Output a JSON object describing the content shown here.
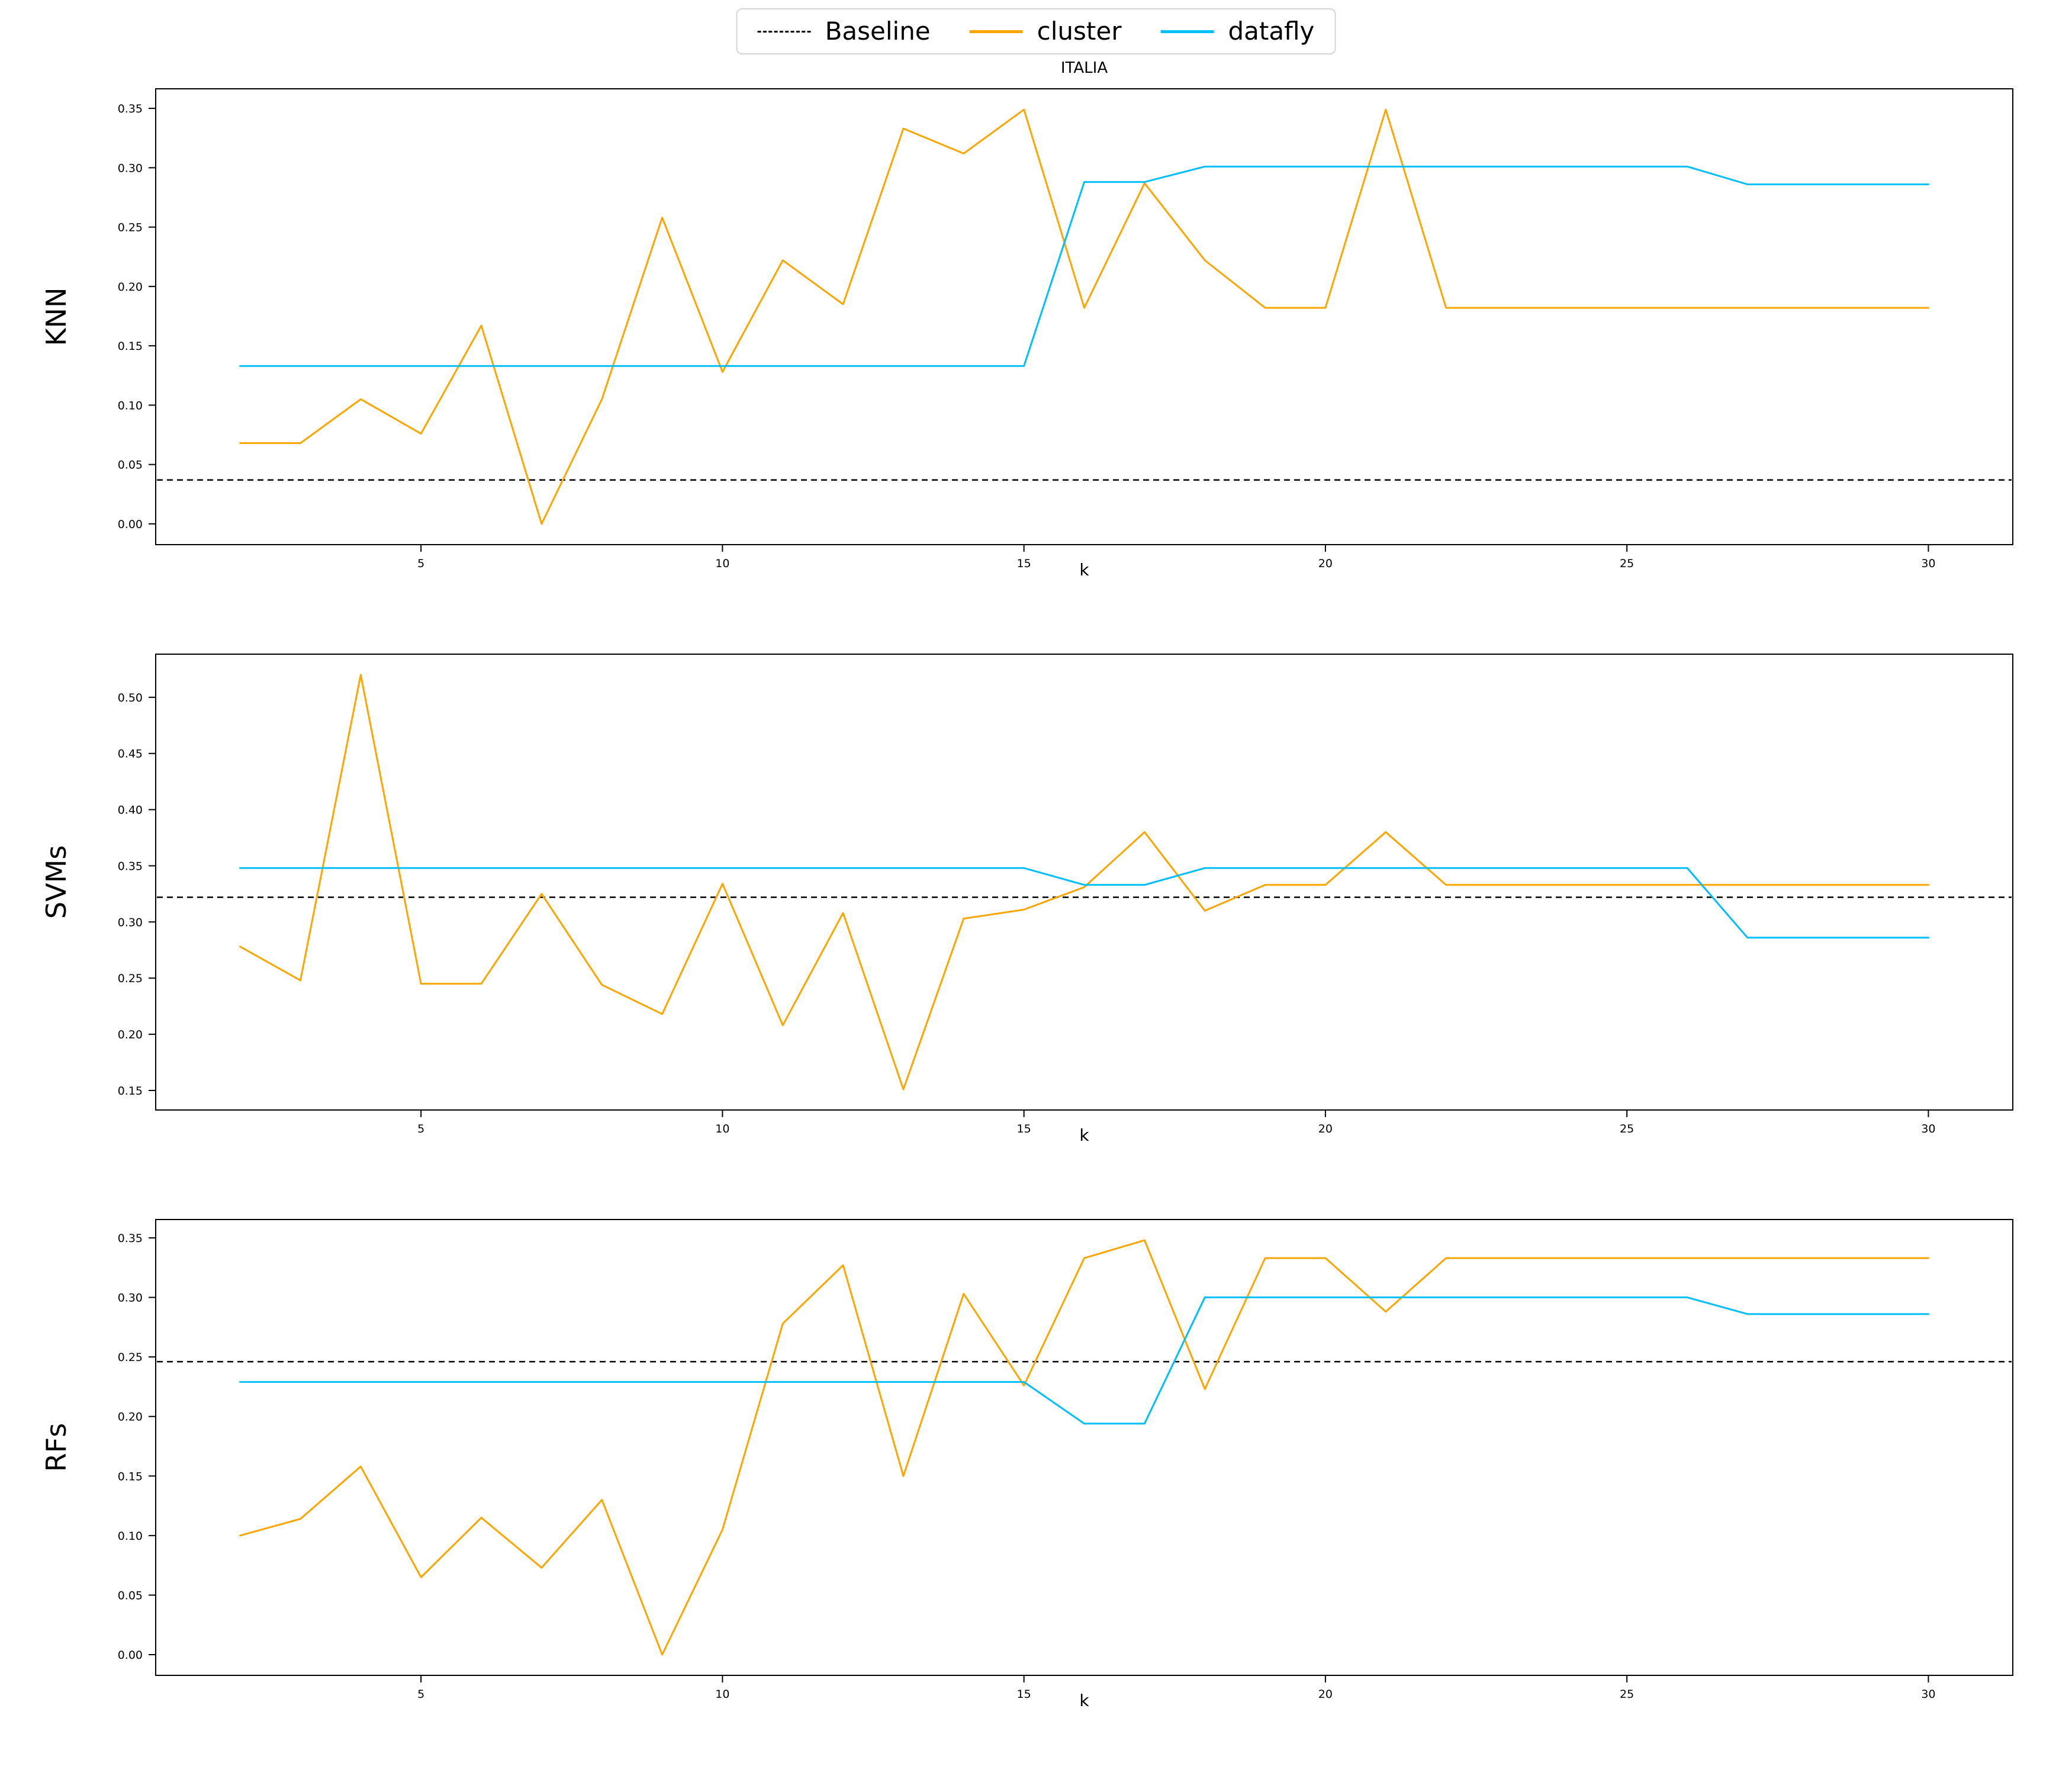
{
  "title": "ITALIA",
  "xlabel": "k",
  "colors": {
    "baseline": "#000000",
    "cluster": "#ffa500",
    "datafly": "#00bfff"
  },
  "legend": {
    "position": "upper center",
    "items": [
      {
        "label": "Baseline",
        "series": "baseline",
        "style": "dashed"
      },
      {
        "label": "cluster",
        "series": "cluster",
        "style": "solid"
      },
      {
        "label": "datafly",
        "series": "datafly",
        "style": "solid"
      }
    ]
  },
  "x_ticks": [
    5,
    10,
    15,
    20,
    25,
    30
  ],
  "chart_data": [
    {
      "name": "knn",
      "type": "line",
      "title": "ITALIA",
      "ylabel": "KNN",
      "xlabel": "k",
      "grid": false,
      "x": [
        2,
        3,
        4,
        5,
        6,
        7,
        8,
        9,
        10,
        11,
        12,
        13,
        14,
        15,
        16,
        17,
        18,
        19,
        20,
        21,
        22,
        23,
        24,
        25,
        26,
        27,
        28,
        29,
        30
      ],
      "baseline": 0.037,
      "series": [
        {
          "name": "cluster",
          "values": [
            0.068,
            0.068,
            0.105,
            0.076,
            0.167,
            0.0,
            0.105,
            0.258,
            0.128,
            0.222,
            0.185,
            0.333,
            0.312,
            0.349,
            0.182,
            0.287,
            0.222,
            0.182,
            0.182,
            0.349,
            0.182,
            0.182,
            0.182,
            0.182,
            0.182,
            0.182,
            0.182,
            0.182,
            0.182
          ]
        },
        {
          "name": "datafly",
          "values": [
            0.133,
            0.133,
            0.133,
            0.133,
            0.133,
            0.133,
            0.133,
            0.133,
            0.133,
            0.133,
            0.133,
            0.133,
            0.133,
            0.133,
            0.288,
            0.288,
            0.301,
            0.301,
            0.301,
            0.301,
            0.301,
            0.301,
            0.301,
            0.301,
            0.301,
            0.286,
            0.286,
            0.286,
            0.286
          ]
        }
      ],
      "yticks": [
        0.0,
        0.05,
        0.1,
        0.15,
        0.2,
        0.25,
        0.3,
        0.35
      ],
      "xticks": [
        5,
        10,
        15,
        20,
        25,
        30
      ],
      "xlim": [
        0.6,
        31.4
      ],
      "ylim": [
        -0.0175,
        0.3665
      ]
    },
    {
      "name": "svms",
      "type": "line",
      "title": "",
      "ylabel": "SVMs",
      "xlabel": "k",
      "grid": false,
      "x": [
        2,
        3,
        4,
        5,
        6,
        7,
        8,
        9,
        10,
        11,
        12,
        13,
        14,
        15,
        16,
        17,
        18,
        19,
        20,
        21,
        22,
        23,
        24,
        25,
        26,
        27,
        28,
        29,
        30
      ],
      "baseline": 0.322,
      "series": [
        {
          "name": "cluster",
          "values": [
            0.278,
            0.248,
            0.52,
            0.245,
            0.245,
            0.325,
            0.244,
            0.218,
            0.334,
            0.208,
            0.308,
            0.151,
            0.303,
            0.311,
            0.331,
            0.38,
            0.31,
            0.333,
            0.333,
            0.38,
            0.333,
            0.333,
            0.333,
            0.333,
            0.333,
            0.333,
            0.333,
            0.333,
            0.333
          ]
        },
        {
          "name": "datafly",
          "values": [
            0.348,
            0.348,
            0.348,
            0.348,
            0.348,
            0.348,
            0.348,
            0.348,
            0.348,
            0.348,
            0.348,
            0.348,
            0.348,
            0.348,
            0.333,
            0.333,
            0.348,
            0.348,
            0.348,
            0.348,
            0.348,
            0.348,
            0.348,
            0.348,
            0.348,
            0.286,
            0.286,
            0.286,
            0.286
          ]
        }
      ],
      "yticks": [
        0.15,
        0.2,
        0.25,
        0.3,
        0.35,
        0.4,
        0.45,
        0.5
      ],
      "xticks": [
        5,
        10,
        15,
        20,
        25,
        30
      ],
      "xlim": [
        0.6,
        31.4
      ],
      "ylim": [
        0.1326,
        0.5384
      ]
    },
    {
      "name": "rfs",
      "type": "line",
      "title": "",
      "ylabel": "RFs",
      "xlabel": "k",
      "grid": false,
      "x": [
        2,
        3,
        4,
        5,
        6,
        7,
        8,
        9,
        10,
        11,
        12,
        13,
        14,
        15,
        16,
        17,
        18,
        19,
        20,
        21,
        22,
        23,
        24,
        25,
        26,
        27,
        28,
        29,
        30
      ],
      "baseline": 0.246,
      "series": [
        {
          "name": "cluster",
          "values": [
            0.1,
            0.114,
            0.158,
            0.065,
            0.115,
            0.073,
            0.13,
            0.0,
            0.105,
            0.278,
            0.327,
            0.15,
            0.303,
            0.226,
            0.333,
            0.348,
            0.223,
            0.333,
            0.333,
            0.288,
            0.333,
            0.333,
            0.333,
            0.333,
            0.333,
            0.333,
            0.333,
            0.333,
            0.333
          ]
        },
        {
          "name": "datafly",
          "values": [
            0.229,
            0.229,
            0.229,
            0.229,
            0.229,
            0.229,
            0.229,
            0.229,
            0.229,
            0.229,
            0.229,
            0.229,
            0.229,
            0.229,
            0.194,
            0.194,
            0.3,
            0.3,
            0.3,
            0.3,
            0.3,
            0.3,
            0.3,
            0.3,
            0.3,
            0.286,
            0.286,
            0.286,
            0.286
          ]
        }
      ],
      "yticks": [
        0.0,
        0.05,
        0.1,
        0.15,
        0.2,
        0.25,
        0.3,
        0.35
      ],
      "xticks": [
        5,
        10,
        15,
        20,
        25,
        30
      ],
      "xlim": [
        0.6,
        31.4
      ],
      "ylim": [
        -0.0174,
        0.3654
      ]
    }
  ]
}
